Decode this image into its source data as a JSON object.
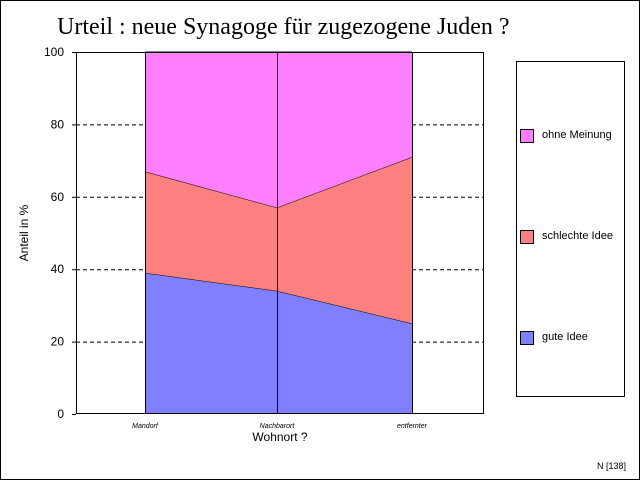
{
  "chart_data": {
    "type": "area",
    "stacked": true,
    "title": "Urteil : neue Synagoge für zugezogene Juden ?",
    "xlabel": "Wohnort ?",
    "ylabel": "Anteil in %",
    "ylim": [
      0,
      100
    ],
    "yticks": [
      0,
      20,
      40,
      60,
      80,
      100
    ],
    "grid": "horizontal-dashed",
    "legend_position": "right",
    "categories": [
      "Mandorf",
      "Nachbarort",
      "entfernter"
    ],
    "series": [
      {
        "name": "gute Idee",
        "color": "#8080ff",
        "values": [
          39,
          34,
          25
        ]
      },
      {
        "name": "schlechte Idee",
        "color": "#ff8080",
        "values": [
          28,
          23,
          46
        ]
      },
      {
        "name": "ohne Meinung",
        "color": "#ff80ff",
        "values": [
          33,
          43,
          29
        ]
      }
    ],
    "note": "N [138]"
  }
}
